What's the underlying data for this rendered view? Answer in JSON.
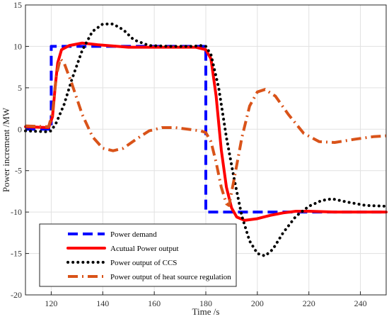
{
  "chart_data": {
    "type": "line",
    "title": "",
    "xlabel": "Time /s",
    "ylabel": "Power increment /MW",
    "xlim": [
      110,
      250
    ],
    "ylim": [
      -20,
      15
    ],
    "xticks": [
      120,
      140,
      160,
      180,
      200,
      220,
      240
    ],
    "yticks": [
      -20,
      -15,
      -10,
      -5,
      0,
      5,
      10,
      15
    ],
    "grid": true,
    "legend_position": "bottom-left",
    "series": [
      {
        "name": "Power demand",
        "color": "#0000ff",
        "style": "dashed",
        "points": [
          [
            110,
            0
          ],
          [
            120,
            0
          ],
          [
            120,
            10
          ],
          [
            180,
            10
          ],
          [
            180,
            -10
          ],
          [
            250,
            -10
          ]
        ]
      },
      {
        "name": "Acutual Power output",
        "color": "#ff0000",
        "style": "solid",
        "points": [
          [
            110,
            0.3
          ],
          [
            119,
            0.2
          ],
          [
            120.5,
            1.5
          ],
          [
            121.5,
            5
          ],
          [
            122.5,
            8
          ],
          [
            124,
            9.6
          ],
          [
            127,
            10.1
          ],
          [
            132,
            10.4
          ],
          [
            138,
            10.2
          ],
          [
            150,
            9.9
          ],
          [
            165,
            9.9
          ],
          [
            176,
            9.9
          ],
          [
            180,
            9.6
          ],
          [
            182,
            8.5
          ],
          [
            184,
            4
          ],
          [
            186,
            -2.5
          ],
          [
            188,
            -7
          ],
          [
            190,
            -9.5
          ],
          [
            192,
            -10.6
          ],
          [
            195,
            -11
          ],
          [
            200,
            -10.8
          ],
          [
            205,
            -10.4
          ],
          [
            210,
            -10.1
          ],
          [
            215,
            -9.9
          ],
          [
            220,
            -9.9
          ],
          [
            230,
            -10
          ],
          [
            240,
            -10
          ],
          [
            250,
            -10
          ]
        ]
      },
      {
        "name": "Power output of CCS",
        "color": "#000000",
        "style": "dotted",
        "points": [
          [
            110,
            -0.2
          ],
          [
            118,
            -0.3
          ],
          [
            120,
            -0.2
          ],
          [
            122,
            0.8
          ],
          [
            125,
            3
          ],
          [
            128,
            6
          ],
          [
            132,
            9.5
          ],
          [
            136,
            11.8
          ],
          [
            140,
            12.7
          ],
          [
            144,
            12.7
          ],
          [
            148,
            12
          ],
          [
            152,
            10.8
          ],
          [
            158,
            10.1
          ],
          [
            166,
            10
          ],
          [
            175,
            10
          ],
          [
            178,
            10.1
          ],
          [
            180,
            10
          ],
          [
            182,
            9
          ],
          [
            185,
            5
          ],
          [
            188,
            -1
          ],
          [
            191,
            -6
          ],
          [
            194,
            -10.5
          ],
          [
            197,
            -13.5
          ],
          [
            200,
            -15
          ],
          [
            203,
            -15.3
          ],
          [
            206,
            -14.5
          ],
          [
            210,
            -12.5
          ],
          [
            215,
            -10.5
          ],
          [
            220,
            -9.3
          ],
          [
            225,
            -8.6
          ],
          [
            229,
            -8.4
          ],
          [
            235,
            -8.8
          ],
          [
            242,
            -9.2
          ],
          [
            250,
            -9.3
          ]
        ]
      },
      {
        "name": "Power output of heat source regulation",
        "color": "#d95319",
        "style": "dashdot",
        "points": [
          [
            110,
            0.4
          ],
          [
            119,
            0.3
          ],
          [
            120.5,
            2
          ],
          [
            122,
            6.5
          ],
          [
            123.5,
            8.5
          ],
          [
            125,
            8
          ],
          [
            128,
            5.5
          ],
          [
            132,
            1.8
          ],
          [
            136,
            -0.9
          ],
          [
            140,
            -2.3
          ],
          [
            144,
            -2.6
          ],
          [
            148,
            -2.3
          ],
          [
            153,
            -1.2
          ],
          [
            158,
            -0.2
          ],
          [
            163,
            0.2
          ],
          [
            168,
            0.2
          ],
          [
            173,
            0
          ],
          [
            178,
            -0.2
          ],
          [
            180,
            -0.4
          ],
          [
            182,
            -1.5
          ],
          [
            184,
            -4
          ],
          [
            186,
            -7
          ],
          [
            188,
            -9
          ],
          [
            189,
            -9.2
          ],
          [
            191,
            -6
          ],
          [
            194,
            -1
          ],
          [
            197,
            2.8
          ],
          [
            200,
            4.5
          ],
          [
            203,
            4.8
          ],
          [
            207,
            4
          ],
          [
            212,
            1.8
          ],
          [
            218,
            -0.5
          ],
          [
            224,
            -1.5
          ],
          [
            230,
            -1.6
          ],
          [
            238,
            -1.2
          ],
          [
            245,
            -0.9
          ],
          [
            250,
            -0.8
          ]
        ]
      }
    ]
  }
}
